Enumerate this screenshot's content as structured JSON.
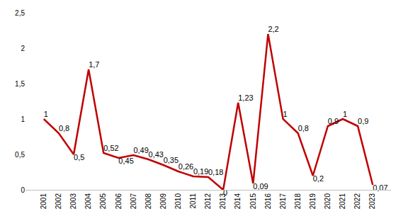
{
  "chart_data": {
    "type": "line",
    "categories": [
      "2001",
      "2002",
      "2003",
      "2004",
      "2005",
      "2006",
      "2007",
      "2008",
      "2009",
      "2010",
      "2011",
      "2012",
      "2013",
      "2014",
      "2015",
      "2016",
      "2017",
      "2018",
      "2019",
      "2020",
      "2021",
      "2022",
      "2023"
    ],
    "values": [
      1,
      0.8,
      0.5,
      1.7,
      0.52,
      0.45,
      0.49,
      0.43,
      0.35,
      0.26,
      0.19,
      0.18,
      0,
      1.23,
      0.09,
      2.2,
      1,
      0.8,
      0.2,
      0.9,
      1,
      0.9,
      0.07
    ],
    "value_labels": [
      "1",
      "0,8",
      "0,5",
      "1,7",
      "0,52",
      "0,45",
      "0,49",
      "0,43",
      "0,35",
      "0,26",
      "0,19",
      "0,18",
      "0",
      "1,23",
      "0,09",
      "2,2",
      "1",
      "0,8",
      "0,2",
      "0,9",
      "1",
      "0,9",
      "0,07"
    ],
    "color": "#c00000",
    "ylim": [
      0,
      2.5
    ],
    "yticks": [
      0,
      {
        "value": 0.5,
        "label": "0,5"
      },
      1,
      {
        "value": 1.5,
        "label": "1,5"
      },
      2,
      {
        "value": 2.5,
        "label": "2,5"
      }
    ],
    "grid": false,
    "data_labels": true
  }
}
